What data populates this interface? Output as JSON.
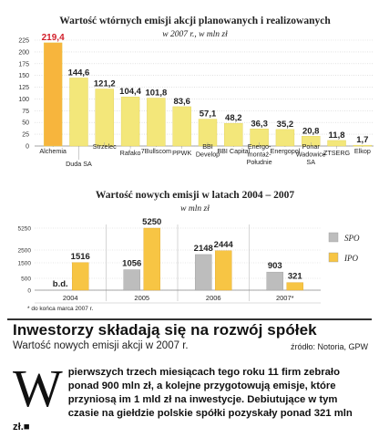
{
  "chart_data": [
    {
      "type": "bar",
      "title": "Wartość wtórnych emisji akcji planowanych i realizowanych",
      "subtitle": "w 2007 r., w mln zł",
      "categories": [
        "Alchemia",
        "Duda SA",
        "Strzelec",
        "Rafako",
        "7Bullscom",
        "PPWK",
        "BBI Develop",
        "BBI Capital",
        "Energo-montaż-Południe",
        "Energopol",
        "Ponar Wadowice SA",
        "ZTSERG",
        "Elkop"
      ],
      "category_lines": [
        [
          "Alchemia"
        ],
        [
          "Duda SA"
        ],
        [
          "Strzelec"
        ],
        [
          "Rafako"
        ],
        [
          "7Bullscom"
        ],
        [
          "PPWK"
        ],
        [
          "BBI",
          "Develop"
        ],
        [
          "BBI Capital"
        ],
        [
          "Energo-",
          "montaż-",
          "Południe"
        ],
        [
          "Energopol"
        ],
        [
          "Ponar",
          "Wadowice",
          "SA"
        ],
        [
          "ZTSERG"
        ],
        [
          "Elkop"
        ]
      ],
      "values": [
        219.4,
        144.6,
        121.2,
        104.4,
        101.8,
        83.6,
        57.1,
        48.2,
        36.3,
        35.2,
        20.8,
        11.8,
        1.7
      ],
      "value_labels": [
        "219,4",
        "144,6",
        "121,2",
        "104,4",
        "101,8",
        "83,6",
        "57,1",
        "48,2",
        "36,3",
        "35,2",
        "20,8",
        "11,8",
        "1,7"
      ],
      "y_ticks": [
        "225",
        "200",
        "175",
        "150",
        "125",
        "100",
        "75",
        "50",
        "25",
        "0"
      ],
      "ylim": [
        0,
        225
      ],
      "highlight_color": "#d21f2a",
      "bar_color": "#f3e77a",
      "first_bar_color": "#f7b53d"
    },
    {
      "type": "bar",
      "title": "Wartość nowych emisji w latach 2004 – 2007",
      "subtitle": "w mln zł",
      "categories": [
        "2004",
        "2005",
        "2006",
        "2007*"
      ],
      "series": [
        {
          "name": "SPO",
          "values": [
            null,
            1056,
            2148,
            903
          ],
          "labels": [
            "b.d.",
            "1056",
            "2148",
            "903"
          ],
          "color": "#bdbdbd"
        },
        {
          "name": "IPO",
          "values": [
            1516,
            5250,
            2444,
            321
          ],
          "labels": [
            "1516",
            "5250",
            "2444",
            "321"
          ],
          "color": "#f7c544"
        }
      ],
      "y_ticks": [
        "5250",
        "2500",
        "1500",
        "500",
        "0"
      ],
      "footnote": "* do końca marca 2007 r."
    }
  ],
  "article": {
    "headline": "Inwestorzy składają się na rozwój spółek",
    "subheadline": "Wartość nowych emisji akcji w 2007 r.",
    "source": "źródło: Notoria, GPW",
    "dropcap": "W",
    "body": "pierwszych trzech miesiącach tego roku 11 firm zebrało ponad 900 mln zł, a kolejne przygotowują emisje, które przyniosą im 1 mld zł na inwestycje. Debiutujące w tym czasie na giełdzie polskie spółki pozyskały ponad 321 mln zł.■"
  }
}
